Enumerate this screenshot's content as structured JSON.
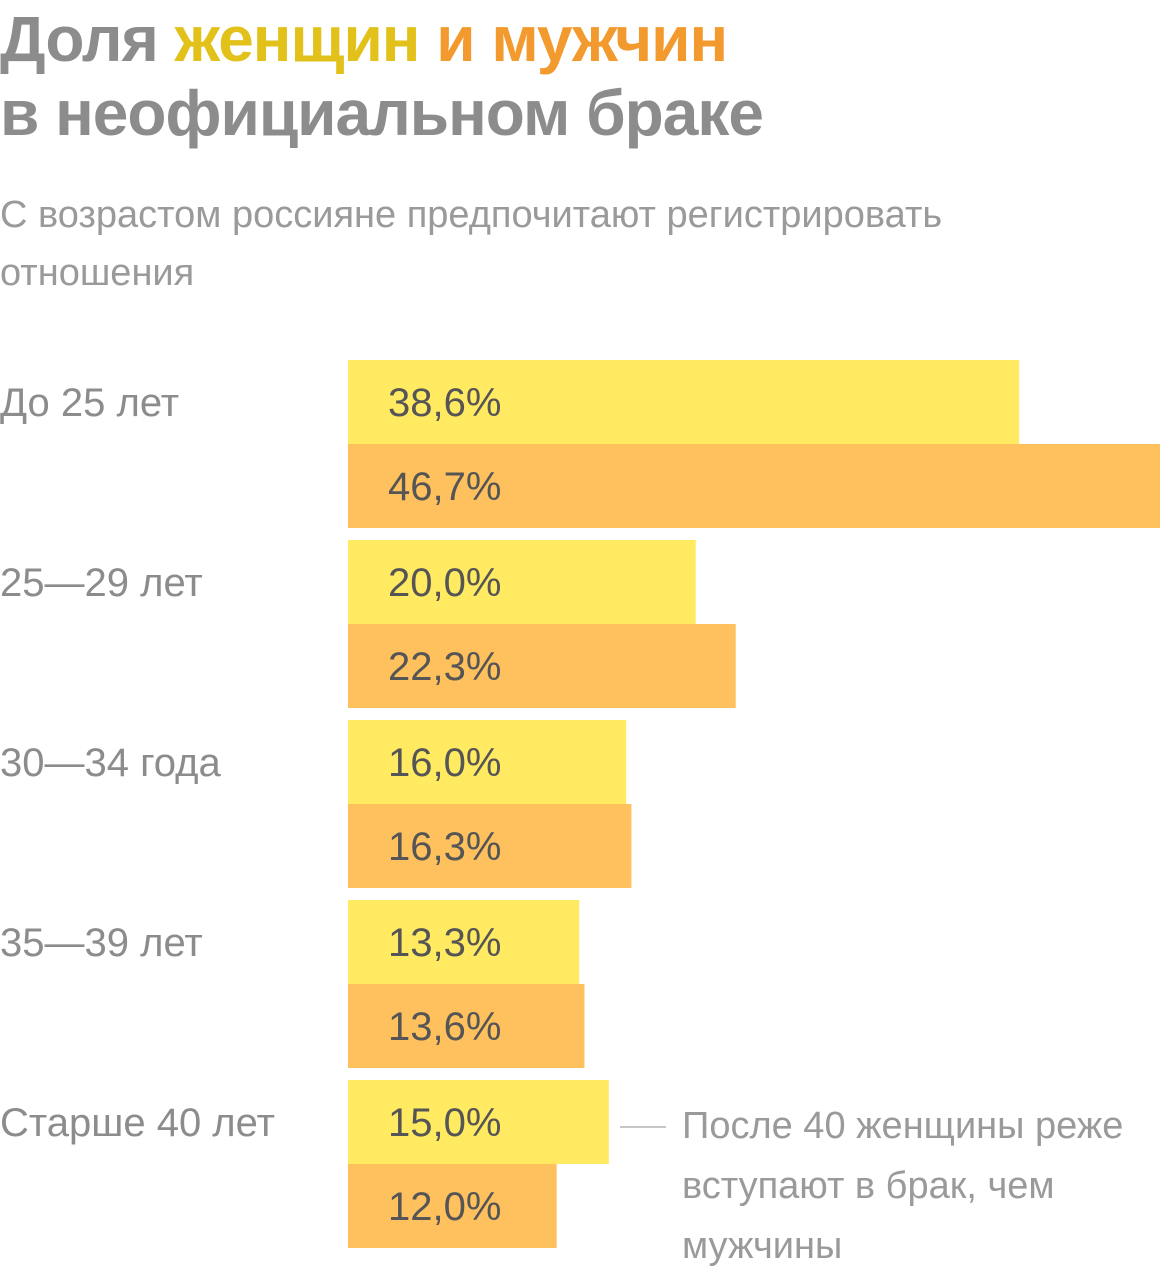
{
  "title": {
    "part1": "Доля ",
    "women": "женщин",
    "between": " ",
    "men": "и мужчин",
    "line2": "в неофициальном браке"
  },
  "subtitle": "С возрастом россияне предпочитают регистрировать отношения",
  "colors": {
    "women_bar": "#FFEA61",
    "men_bar": "#FFC15E",
    "women_title": "#E2C11A",
    "men_title": "#F29A2E",
    "title_gray": "#8C8C8C"
  },
  "chart_data": {
    "type": "bar",
    "orientation": "horizontal",
    "categories": [
      "До 25 лет",
      "25—29 лет",
      "30—34 года",
      "35—39 лет",
      "Старше 40 лет"
    ],
    "series": [
      {
        "values": [
          38.6,
          20.0,
          16.0,
          13.3,
          15.0
        ],
        "labels": [
          "38,6%",
          "20,0%",
          "16,0%",
          "13,3%",
          "15,0%"
        ]
      },
      {
        "values": [
          46.7,
          22.3,
          16.3,
          13.6,
          12.0
        ],
        "labels": [
          "46,7%",
          "22,3%",
          "16,3%",
          "13,6%",
          "12,0%"
        ]
      }
    ],
    "xlim": [
      0,
      46.7
    ],
    "grid": false,
    "legend": "in title"
  },
  "annotation": "После 40 женщины реже вступают в брак, чем мужчины"
}
